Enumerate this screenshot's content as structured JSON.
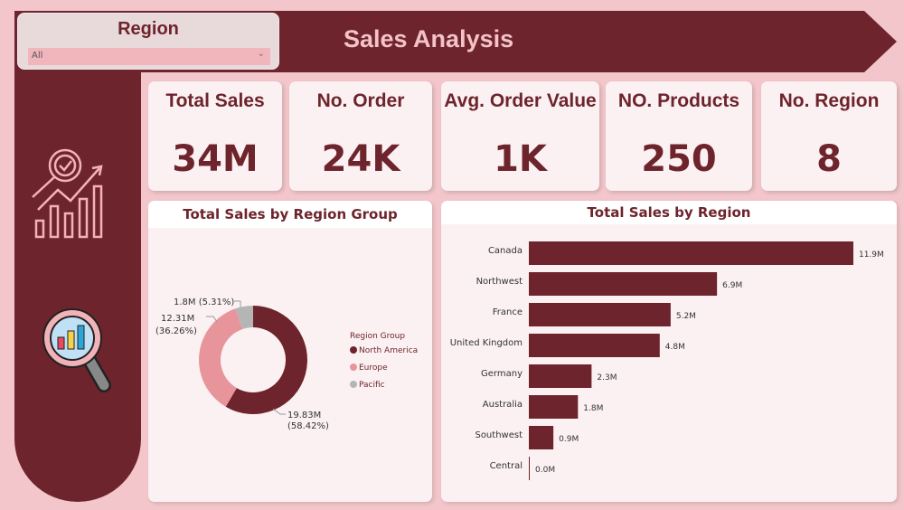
{
  "header": {
    "title": "Sales Analysis"
  },
  "slicer": {
    "label": "Region",
    "value": "All"
  },
  "kpis": [
    {
      "label": "Total Sales",
      "value": "34M"
    },
    {
      "label": "No. Order",
      "value": "24K"
    },
    {
      "label": "Avg. Order Value",
      "value": "1K"
    },
    {
      "label": "NO. Products",
      "value": "250"
    },
    {
      "label": "No. Region",
      "value": "8"
    }
  ],
  "colors": {
    "primary": "#6e242c",
    "europe": "#e8949b",
    "pacific": "#b5b5b5",
    "background": "#f2c6ca"
  },
  "chart_data": [
    {
      "type": "pie",
      "title": "Total Sales by Region Group",
      "legend_title": "Region Group",
      "legend_position": "right",
      "series": [
        {
          "name": "North America",
          "value": 19.83,
          "label": "19.83M",
          "pct": "(58.42%)",
          "color": "#6e242c"
        },
        {
          "name": "Europe",
          "value": 12.31,
          "label": "12.31M",
          "pct": "(36.26%)",
          "color": "#e8949b"
        },
        {
          "name": "Pacific",
          "value": 1.8,
          "label": "1.8M (5.31%)",
          "pct": "",
          "color": "#b5b5b5"
        }
      ]
    },
    {
      "type": "bar",
      "title": "Total Sales by Region",
      "orientation": "horizontal",
      "categories": [
        "Canada",
        "Northwest",
        "France",
        "United Kingdom",
        "Germany",
        "Australia",
        "Southwest",
        "Central"
      ],
      "values": [
        11.9,
        6.9,
        5.2,
        4.8,
        2.3,
        1.8,
        0.9,
        0.0
      ],
      "labels": [
        "11.9M",
        "6.9M",
        "5.2M",
        "4.8M",
        "2.3M",
        "1.8M",
        "0.9M",
        "0.0M"
      ]
    }
  ]
}
